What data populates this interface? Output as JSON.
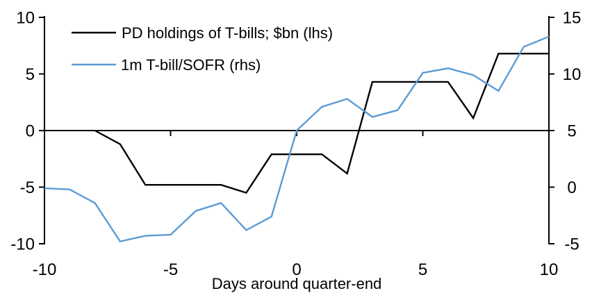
{
  "chart_data": {
    "type": "line",
    "title": "",
    "x_axis": {
      "label": "Days around quarter-end",
      "range": [
        -10,
        10
      ],
      "ticks": [
        -10,
        -5,
        0,
        5,
        10
      ],
      "tick_marks": [
        -5,
        0,
        5
      ]
    },
    "left_axis": {
      "range": [
        -10,
        10
      ],
      "ticks": [
        10,
        5,
        0,
        -5,
        -10
      ]
    },
    "right_axis": {
      "range": [
        -5,
        15
      ],
      "ticks": [
        15,
        10,
        5,
        0,
        -5
      ]
    },
    "grid": "off",
    "legend_position": "top-left",
    "legend": [
      {
        "label": "PD holdings of T-bills; $bn (lhs)"
      },
      {
        "label": "1m T-bill/SOFR (rhs)"
      }
    ],
    "series": [
      {
        "name": "PD holdings of T-bills; $bn (lhs)",
        "axis": "left",
        "color": "#000000",
        "x": [
          -8,
          -7,
          -6,
          -5,
          -4,
          -3,
          -2,
          -1,
          0,
          1,
          2,
          3,
          4,
          5,
          6,
          7,
          8,
          9,
          10
        ],
        "values": [
          0.0,
          -1.2,
          -4.8,
          -4.8,
          -4.8,
          -4.8,
          -5.5,
          -2.1,
          -2.1,
          -2.1,
          -3.8,
          4.3,
          4.3,
          4.3,
          4.3,
          1.1,
          6.8,
          6.8,
          6.8
        ]
      },
      {
        "name": "1m T-bill/SOFR (rhs)",
        "axis": "right",
        "color": "#5B9BD5",
        "x": [
          -10,
          -9,
          -8,
          -7,
          -6,
          -5,
          -4,
          -3,
          -2,
          -1,
          0,
          1,
          2,
          3,
          4,
          5,
          6,
          7,
          8,
          9,
          10
        ],
        "values": [
          -0.1,
          -0.2,
          -1.4,
          -4.8,
          -4.3,
          -4.2,
          -2.1,
          -1.4,
          -3.8,
          -2.6,
          5.0,
          7.1,
          7.8,
          6.2,
          6.8,
          10.1,
          10.5,
          9.9,
          8.5,
          12.4,
          13.3
        ]
      }
    ]
  }
}
